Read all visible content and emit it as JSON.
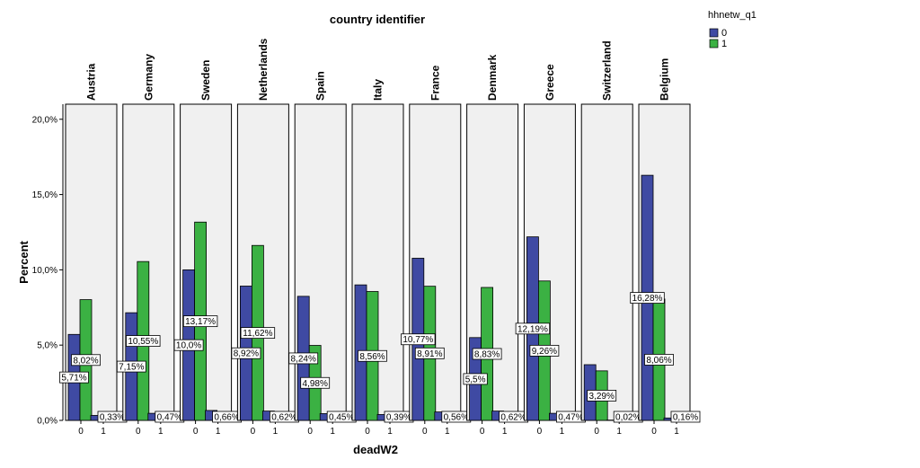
{
  "chart_data": {
    "type": "bar",
    "title": "country identifier",
    "xlabel": "deadW2",
    "ylabel": "Percent",
    "ylim": [
      0,
      21
    ],
    "yticks": [
      0,
      5,
      10,
      15,
      20
    ],
    "ytick_labels": [
      "0,0%",
      "5,0%",
      "10,0%",
      "15,0%",
      "20,0%"
    ],
    "categories": [
      "0",
      "1"
    ],
    "legend": {
      "title": "hhnetw_q1",
      "placement": "top-right",
      "entries": [
        {
          "name": "0",
          "color": "#3f4aa3"
        },
        {
          "name": "1",
          "color": "#3bb143"
        }
      ]
    },
    "panels": [
      {
        "name": "Austria",
        "values": {
          "0": [
            5.71,
            8.02
          ],
          "1": [
            0.33,
            0
          ]
        },
        "labels": {
          "0": [
            "5,71%",
            "8,02%"
          ],
          "1": [
            "0,33%"
          ]
        }
      },
      {
        "name": "Germany",
        "values": {
          "0": [
            7.15,
            10.55
          ],
          "1": [
            0.47,
            0
          ]
        },
        "labels": {
          "0": [
            "7,15%",
            "10,55%"
          ],
          "1": [
            "0,47%"
          ]
        }
      },
      {
        "name": "Sweden",
        "values": {
          "0": [
            10.0,
            13.17
          ],
          "1": [
            0.66,
            0
          ]
        },
        "labels": {
          "0": [
            "10,0%",
            "13,17%"
          ],
          "1": [
            "0,66%"
          ]
        }
      },
      {
        "name": "Netherlands",
        "values": {
          "0": [
            8.92,
            11.62
          ],
          "1": [
            0.62,
            0
          ]
        },
        "labels": {
          "0": [
            "8,92%",
            "11,62%"
          ],
          "1": [
            "0,62%"
          ]
        }
      },
      {
        "name": "Spain",
        "values": {
          "0": [
            8.24,
            4.98
          ],
          "1": [
            0.45,
            0
          ]
        },
        "labels": {
          "0": [
            "8,24%",
            "4,98%"
          ],
          "1": [
            "0,45%"
          ]
        }
      },
      {
        "name": "Italy",
        "values": {
          "0": [
            9.0,
            8.56
          ],
          "1": [
            0.39,
            0
          ]
        },
        "labels": {
          "0": [
            "",
            "8,56%"
          ],
          "1": [
            "0,39%"
          ]
        }
      },
      {
        "name": "France",
        "values": {
          "0": [
            10.77,
            8.91
          ],
          "1": [
            0.56,
            0
          ]
        },
        "labels": {
          "0": [
            "10,77%",
            "8,91%"
          ],
          "1": [
            "0,56%"
          ]
        }
      },
      {
        "name": "Denmark",
        "values": {
          "0": [
            5.5,
            8.83
          ],
          "1": [
            0.62,
            0
          ]
        },
        "labels": {
          "0": [
            "5,5%",
            "8,83%"
          ],
          "1": [
            "0,62%"
          ]
        }
      },
      {
        "name": "Greece",
        "values": {
          "0": [
            12.19,
            9.26
          ],
          "1": [
            0.47,
            0
          ]
        },
        "labels": {
          "0": [
            "12,19%",
            "9,26%"
          ],
          "1": [
            "0,47%"
          ]
        }
      },
      {
        "name": "Switzerland",
        "values": {
          "0": [
            3.7,
            3.29
          ],
          "1": [
            0.02,
            0
          ]
        },
        "labels": {
          "0": [
            "",
            "3,29%"
          ],
          "1": [
            "0,02%"
          ]
        }
      },
      {
        "name": "Belgium",
        "values": {
          "0": [
            16.28,
            8.06
          ],
          "1": [
            0.16,
            0
          ]
        },
        "labels": {
          "0": [
            "16,28%",
            "8,06%"
          ],
          "1": [
            "0,16%"
          ]
        }
      }
    ],
    "grid": false
  }
}
